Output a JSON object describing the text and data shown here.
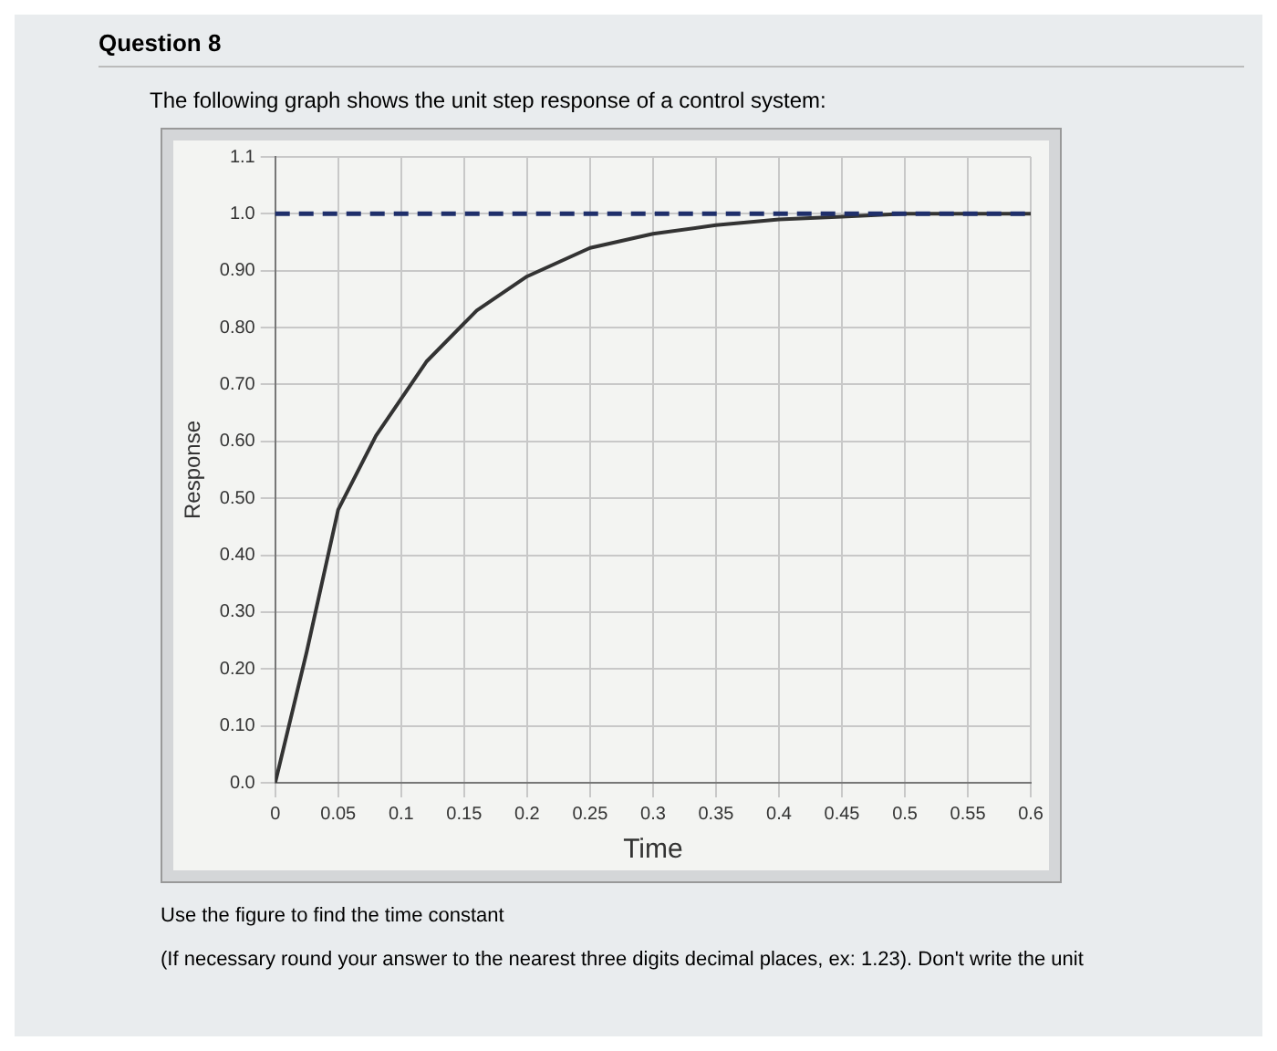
{
  "chart_data": {
    "type": "line",
    "title": "Question 8",
    "subtitle": "The following graph shows the unit step response of a control system:",
    "xlabel": "Time",
    "ylabel": "Response",
    "annotations": [
      "Use the figure to find the time constant",
      "(If necessary round your answer to the nearest three digits decimal places, ex: 1.23). Don't write the unit"
    ],
    "x": [
      0,
      0.025,
      0.05,
      0.08,
      0.12,
      0.16,
      0.2,
      0.25,
      0.3,
      0.35,
      0.4,
      0.45,
      0.5,
      0.6
    ],
    "series": [
      {
        "color": "#333333",
        "values": [
          0,
          0.23,
          0.48,
          0.61,
          0.74,
          0.83,
          0.89,
          0.94,
          0.965,
          0.98,
          0.99,
          0.995,
          1.0,
          1.0
        ]
      }
    ],
    "xlim": [
      0,
      0.6
    ],
    "xticks": [
      0,
      0.05,
      0.1,
      0.15,
      0.2,
      0.25,
      0.3,
      0.35,
      0.4,
      0.45,
      0.5,
      0.55,
      0.6
    ],
    "ylim": [
      0,
      1.1
    ],
    "yticks": [
      {
        "value": 0,
        "label": "0.0"
      },
      {
        "value": 0.1,
        "label": "0.10"
      },
      {
        "value": 0.2,
        "label": "0.20"
      },
      {
        "value": 0.3,
        "label": "0.30"
      },
      {
        "value": 0.4,
        "label": "0.40"
      },
      {
        "value": 0.5,
        "label": "0.50"
      },
      {
        "value": 0.6,
        "label": "0.60"
      },
      {
        "value": 0.7,
        "label": "0.70"
      },
      {
        "value": 0.8,
        "label": "0.80"
      },
      {
        "value": 0.9,
        "label": "0.90"
      },
      {
        "value": 1.0,
        "label": "1.0"
      },
      1.1
    ],
    "ref_lines": [
      {
        "axis": "y",
        "value": 1.0,
        "color": "#1f2f6b",
        "line_style": "dashed"
      }
    ],
    "grid": true,
    "legend": false,
    "marker": "none",
    "line_style": "solid"
  }
}
